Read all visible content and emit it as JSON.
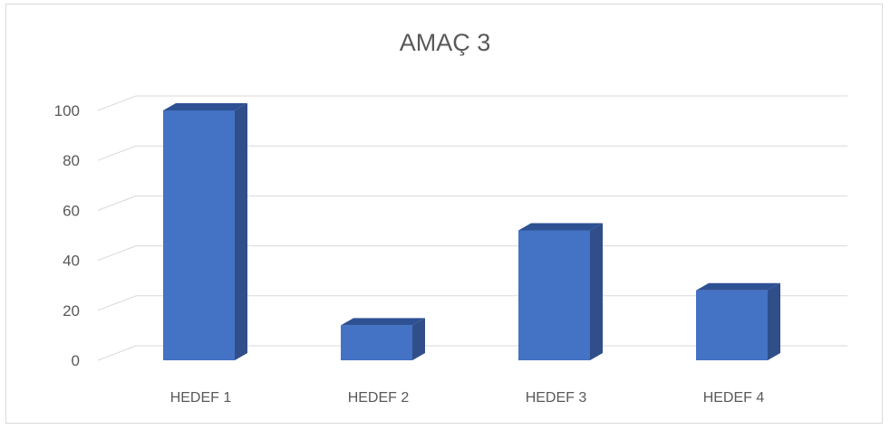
{
  "chart_data": {
    "type": "bar",
    "title": "AMAÇ 3",
    "categories": [
      "HEDEF 1",
      "HEDEF 2",
      "HEDEF 3",
      "HEDEF 4"
    ],
    "values": [
      100,
      14,
      52,
      28
    ],
    "ylim": [
      0,
      100
    ],
    "yticks": [
      0,
      20,
      40,
      60,
      80,
      100
    ],
    "xlabel": "",
    "ylabel": "",
    "grid": true,
    "style": "3d-column",
    "colors": {
      "front": "#4472C4",
      "side": "#2F4E8A",
      "top": "#2E5193",
      "grid": "#d9d9d9"
    }
  }
}
